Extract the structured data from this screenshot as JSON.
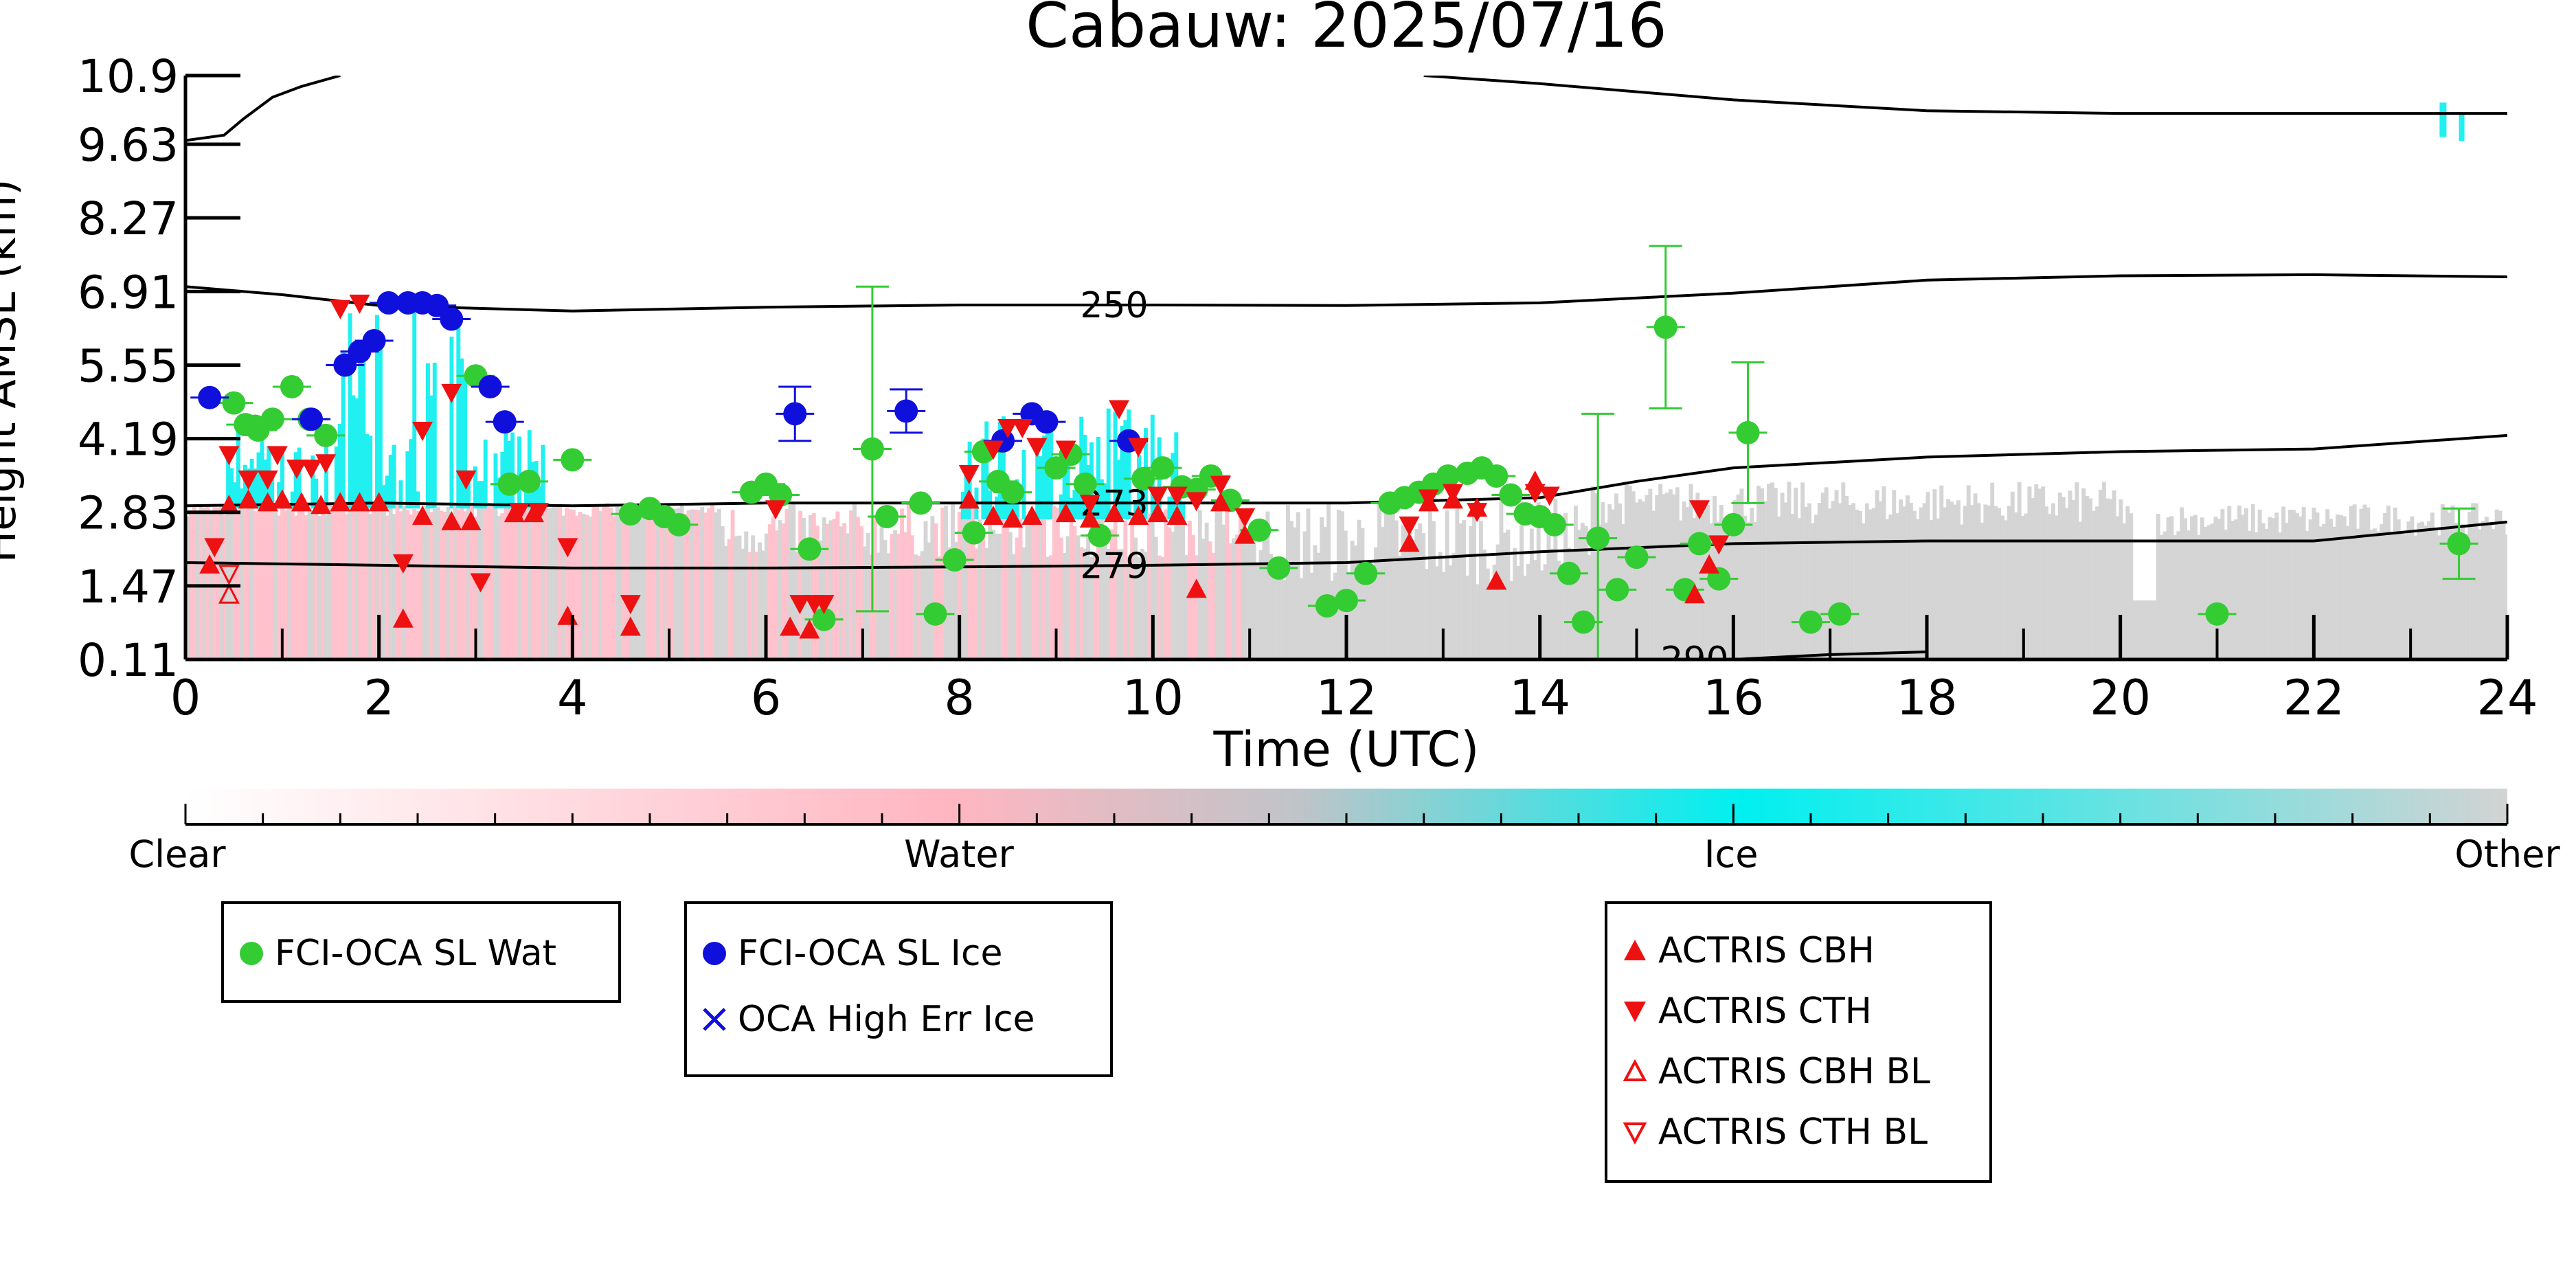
{
  "chart_data": {
    "type": "scatter",
    "title": "Cabauw: 2025/07/16",
    "xlabel": "Time (UTC)",
    "ylabel": "Height AMSL (km)",
    "xlim": [
      0,
      24
    ],
    "ylim": [
      0.11,
      10.9
    ],
    "x_ticks": [
      0,
      2,
      4,
      6,
      8,
      10,
      12,
      14,
      16,
      18,
      20,
      22,
      24
    ],
    "y_ticks": [
      0.11,
      1.47,
      2.83,
      4.19,
      5.55,
      6.91,
      8.27,
      9.63,
      10.9
    ],
    "y_tick_labels": [
      "0.11",
      "1.47",
      "2.83",
      "4.19",
      "5.55",
      "6.91",
      "8.27",
      "9.63",
      "10.9"
    ],
    "colorbar": {
      "labels": [
        "Clear",
        "Water",
        "Ice",
        "Other"
      ],
      "colors": [
        "#ffffff",
        "#ffb6c1",
        "#00f0f0",
        "#d3d3d3"
      ]
    },
    "isotherms": [
      {
        "label": "250",
        "label_x": 9.6,
        "points": [
          [
            0,
            7.0
          ],
          [
            1,
            6.85
          ],
          [
            2,
            6.65
          ],
          [
            4,
            6.55
          ],
          [
            6,
            6.62
          ],
          [
            8,
            6.66
          ],
          [
            10,
            6.66
          ],
          [
            12,
            6.65
          ],
          [
            14,
            6.7
          ],
          [
            16,
            6.88
          ],
          [
            18,
            7.12
          ],
          [
            20,
            7.2
          ],
          [
            22,
            7.22
          ],
          [
            24,
            7.18
          ]
        ]
      },
      {
        "label": "273",
        "label_x": 9.6,
        "points": [
          [
            0,
            2.95
          ],
          [
            2,
            3.0
          ],
          [
            4,
            2.95
          ],
          [
            6,
            3.0
          ],
          [
            8,
            3.0
          ],
          [
            10,
            3.0
          ],
          [
            12,
            3.0
          ],
          [
            14,
            3.1
          ],
          [
            15,
            3.4
          ],
          [
            16,
            3.65
          ],
          [
            18,
            3.85
          ],
          [
            20,
            3.95
          ],
          [
            22,
            4.0
          ],
          [
            24,
            4.25
          ]
        ]
      },
      {
        "label": "279",
        "label_x": 9.6,
        "points": [
          [
            0,
            1.9
          ],
          [
            2,
            1.85
          ],
          [
            4,
            1.8
          ],
          [
            6,
            1.8
          ],
          [
            8,
            1.82
          ],
          [
            10,
            1.85
          ],
          [
            12,
            1.9
          ],
          [
            13,
            2.0
          ],
          [
            14,
            2.1
          ],
          [
            16,
            2.25
          ],
          [
            18,
            2.3
          ],
          [
            20,
            2.3
          ],
          [
            22,
            2.3
          ],
          [
            24,
            2.65
          ]
        ]
      },
      {
        "label": "290",
        "label_x": 15.6,
        "points": [
          [
            14.2,
            0.11
          ],
          [
            16,
            0.11
          ],
          [
            17,
            0.2
          ],
          [
            18,
            0.25
          ]
        ]
      }
    ],
    "tropopause": [
      {
        "points": [
          [
            0,
            9.7
          ],
          [
            0.4,
            9.8
          ],
          [
            0.6,
            10.1
          ],
          [
            0.9,
            10.5
          ],
          [
            1.2,
            10.7
          ],
          [
            1.6,
            10.9
          ]
        ]
      },
      {
        "points": [
          [
            12.8,
            10.9
          ],
          [
            14,
            10.75
          ],
          [
            16,
            10.45
          ],
          [
            18,
            10.25
          ],
          [
            20,
            10.2
          ],
          [
            22,
            10.2
          ],
          [
            24,
            10.2
          ]
        ]
      }
    ],
    "series": [
      {
        "name": "FCI-OCA SL Wat",
        "color": "#33cc33",
        "marker": "circle",
        "points": [
          {
            "x": 0.5,
            "y": 4.85
          },
          {
            "x": 0.62,
            "y": 4.45
          },
          {
            "x": 0.75,
            "y": 4.35
          },
          {
            "x": 0.9,
            "y": 4.55
          },
          {
            "x": 1.1,
            "y": 5.15
          },
          {
            "x": 1.45,
            "y": 4.25
          },
          {
            "x": 3.0,
            "y": 5.35
          },
          {
            "x": 3.35,
            "y": 3.35
          },
          {
            "x": 3.55,
            "y": 3.4
          },
          {
            "x": 4.0,
            "y": 3.8
          },
          {
            "x": 4.6,
            "y": 2.8
          },
          {
            "x": 4.8,
            "y": 2.9
          },
          {
            "x": 4.95,
            "y": 2.75
          },
          {
            "x": 5.1,
            "y": 2.6
          },
          {
            "x": 5.85,
            "y": 3.2
          },
          {
            "x": 6.0,
            "y": 3.35
          },
          {
            "x": 6.15,
            "y": 3.15
          },
          {
            "x": 6.45,
            "y": 2.15
          },
          {
            "x": 6.6,
            "y": 0.85
          },
          {
            "x": 7.1,
            "y": 4.0,
            "err": 3.0
          },
          {
            "x": 7.25,
            "y": 2.75
          },
          {
            "x": 7.6,
            "y": 3.0
          },
          {
            "x": 7.75,
            "y": 0.95
          },
          {
            "x": 7.95,
            "y": 1.95
          },
          {
            "x": 8.15,
            "y": 2.45
          },
          {
            "x": 8.25,
            "y": 3.95
          },
          {
            "x": 8.4,
            "y": 3.4
          },
          {
            "x": 8.55,
            "y": 3.2
          },
          {
            "x": 9.0,
            "y": 3.65
          },
          {
            "x": 9.15,
            "y": 3.9
          },
          {
            "x": 9.3,
            "y": 3.35
          },
          {
            "x": 9.45,
            "y": 2.4
          },
          {
            "x": 9.9,
            "y": 3.45
          },
          {
            "x": 10.1,
            "y": 3.65
          },
          {
            "x": 10.3,
            "y": 3.3
          },
          {
            "x": 10.45,
            "y": 3.25
          },
          {
            "x": 10.6,
            "y": 3.5
          },
          {
            "x": 10.8,
            "y": 3.05
          },
          {
            "x": 11.1,
            "y": 2.5
          },
          {
            "x": 11.3,
            "y": 1.8
          },
          {
            "x": 11.8,
            "y": 1.1
          },
          {
            "x": 12.0,
            "y": 1.2
          },
          {
            "x": 12.2,
            "y": 1.7
          },
          {
            "x": 12.45,
            "y": 3.0
          },
          {
            "x": 12.6,
            "y": 3.1
          },
          {
            "x": 12.75,
            "y": 3.2
          },
          {
            "x": 12.9,
            "y": 3.35
          },
          {
            "x": 13.05,
            "y": 3.5
          },
          {
            "x": 13.25,
            "y": 3.55
          },
          {
            "x": 13.4,
            "y": 3.65
          },
          {
            "x": 13.55,
            "y": 3.5
          },
          {
            "x": 13.7,
            "y": 3.15
          },
          {
            "x": 13.85,
            "y": 2.8
          },
          {
            "x": 14.0,
            "y": 2.75
          },
          {
            "x": 14.15,
            "y": 2.6
          },
          {
            "x": 14.3,
            "y": 1.7
          },
          {
            "x": 14.45,
            "y": 0.8
          },
          {
            "x": 14.6,
            "y": 2.35,
            "err": 2.3
          },
          {
            "x": 14.8,
            "y": 1.4
          },
          {
            "x": 15.0,
            "y": 2.0
          },
          {
            "x": 15.3,
            "y": 6.25,
            "err": 1.5
          },
          {
            "x": 15.5,
            "y": 1.4
          },
          {
            "x": 15.65,
            "y": 2.25
          },
          {
            "x": 15.85,
            "y": 1.6
          },
          {
            "x": 16.0,
            "y": 2.6
          },
          {
            "x": 16.15,
            "y": 4.3,
            "err": 1.3
          },
          {
            "x": 16.8,
            "y": 0.8
          },
          {
            "x": 17.1,
            "y": 0.95
          },
          {
            "x": 21.0,
            "y": 0.95
          },
          {
            "x": 23.5,
            "y": 2.25,
            "err": 0.65
          },
          {
            "x": 0.72,
            "y": 4.42
          },
          {
            "x": 1.28,
            "y": 4.55
          }
        ]
      },
      {
        "name": "FCI-OCA SL Ice",
        "color": "#1010dd",
        "marker": "circle",
        "points": [
          {
            "x": 0.25,
            "y": 4.95
          },
          {
            "x": 1.3,
            "y": 4.55
          },
          {
            "x": 1.65,
            "y": 5.55
          },
          {
            "x": 1.8,
            "y": 5.8
          },
          {
            "x": 1.95,
            "y": 6.0
          },
          {
            "x": 2.1,
            "y": 6.7
          },
          {
            "x": 2.3,
            "y": 6.7
          },
          {
            "x": 2.45,
            "y": 6.7
          },
          {
            "x": 2.6,
            "y": 6.65
          },
          {
            "x": 2.75,
            "y": 6.4
          },
          {
            "x": 3.15,
            "y": 5.15
          },
          {
            "x": 3.3,
            "y": 4.5
          },
          {
            "x": 6.3,
            "y": 4.65,
            "err": 0.5
          },
          {
            "x": 7.45,
            "y": 4.7,
            "err": 0.4
          },
          {
            "x": 8.45,
            "y": 4.15
          },
          {
            "x": 8.75,
            "y": 4.65
          },
          {
            "x": 8.9,
            "y": 4.5
          },
          {
            "x": 9.75,
            "y": 4.15
          }
        ]
      },
      {
        "name": "ACTRIS CBH",
        "color": "#ee1111",
        "marker": "triangle-up",
        "points": [
          {
            "x": 0.25,
            "y": 1.85
          },
          {
            "x": 0.45,
            "y": 2.95
          },
          {
            "x": 0.65,
            "y": 3.05
          },
          {
            "x": 0.85,
            "y": 3.0
          },
          {
            "x": 1.0,
            "y": 3.05
          },
          {
            "x": 1.2,
            "y": 3.0
          },
          {
            "x": 1.4,
            "y": 2.95
          },
          {
            "x": 1.6,
            "y": 3.0
          },
          {
            "x": 1.8,
            "y": 3.0
          },
          {
            "x": 2.0,
            "y": 3.0
          },
          {
            "x": 2.25,
            "y": 0.85
          },
          {
            "x": 2.45,
            "y": 2.75
          },
          {
            "x": 2.75,
            "y": 2.65
          },
          {
            "x": 2.95,
            "y": 2.65
          },
          {
            "x": 3.4,
            "y": 2.8
          },
          {
            "x": 3.6,
            "y": 2.8
          },
          {
            "x": 3.95,
            "y": 0.9
          },
          {
            "x": 4.6,
            "y": 0.7
          },
          {
            "x": 6.25,
            "y": 0.7
          },
          {
            "x": 6.45,
            "y": 0.65
          },
          {
            "x": 8.1,
            "y": 3.05
          },
          {
            "x": 8.35,
            "y": 2.75
          },
          {
            "x": 8.55,
            "y": 2.7
          },
          {
            "x": 8.75,
            "y": 2.75
          },
          {
            "x": 9.1,
            "y": 2.8
          },
          {
            "x": 9.35,
            "y": 2.7
          },
          {
            "x": 9.6,
            "y": 2.8
          },
          {
            "x": 9.85,
            "y": 2.75
          },
          {
            "x": 10.05,
            "y": 2.8
          },
          {
            "x": 10.25,
            "y": 2.75
          },
          {
            "x": 10.45,
            "y": 1.4
          },
          {
            "x": 10.7,
            "y": 3.0
          },
          {
            "x": 10.95,
            "y": 2.4
          },
          {
            "x": 12.65,
            "y": 2.25
          },
          {
            "x": 12.85,
            "y": 3.0
          },
          {
            "x": 13.1,
            "y": 3.05
          },
          {
            "x": 13.35,
            "y": 2.9
          },
          {
            "x": 13.55,
            "y": 1.55
          },
          {
            "x": 13.95,
            "y": 3.4
          },
          {
            "x": 15.6,
            "y": 1.3
          },
          {
            "x": 15.75,
            "y": 1.85
          }
        ]
      },
      {
        "name": "ACTRIS CTH",
        "color": "#ee1111",
        "marker": "triangle-down",
        "points": [
          {
            "x": 0.3,
            "y": 2.2
          },
          {
            "x": 0.45,
            "y": 3.9
          },
          {
            "x": 0.65,
            "y": 3.45
          },
          {
            "x": 0.85,
            "y": 3.45
          },
          {
            "x": 0.95,
            "y": 3.9
          },
          {
            "x": 1.15,
            "y": 3.65
          },
          {
            "x": 1.3,
            "y": 3.65
          },
          {
            "x": 1.45,
            "y": 3.75
          },
          {
            "x": 1.6,
            "y": 6.6
          },
          {
            "x": 1.8,
            "y": 6.7
          },
          {
            "x": 2.25,
            "y": 1.9
          },
          {
            "x": 2.45,
            "y": 4.35
          },
          {
            "x": 2.75,
            "y": 5.05
          },
          {
            "x": 2.9,
            "y": 3.45
          },
          {
            "x": 3.05,
            "y": 1.55
          },
          {
            "x": 3.45,
            "y": 2.85
          },
          {
            "x": 3.65,
            "y": 2.85
          },
          {
            "x": 3.95,
            "y": 2.2
          },
          {
            "x": 4.6,
            "y": 1.15
          },
          {
            "x": 6.1,
            "y": 2.9
          },
          {
            "x": 6.35,
            "y": 1.15
          },
          {
            "x": 6.5,
            "y": 1.15
          },
          {
            "x": 6.6,
            "y": 1.15
          },
          {
            "x": 8.1,
            "y": 3.55
          },
          {
            "x": 8.35,
            "y": 4.0
          },
          {
            "x": 8.5,
            "y": 4.4
          },
          {
            "x": 8.65,
            "y": 4.4
          },
          {
            "x": 8.8,
            "y": 4.05
          },
          {
            "x": 9.1,
            "y": 4.0
          },
          {
            "x": 9.35,
            "y": 3.0
          },
          {
            "x": 9.65,
            "y": 4.75
          },
          {
            "x": 9.85,
            "y": 4.05
          },
          {
            "x": 10.05,
            "y": 3.15
          },
          {
            "x": 10.25,
            "y": 3.15
          },
          {
            "x": 10.45,
            "y": 3.05
          },
          {
            "x": 10.7,
            "y": 3.35
          },
          {
            "x": 10.95,
            "y": 2.75
          },
          {
            "x": 12.65,
            "y": 2.6
          },
          {
            "x": 12.85,
            "y": 3.1
          },
          {
            "x": 13.1,
            "y": 3.2
          },
          {
            "x": 13.35,
            "y": 2.85
          },
          {
            "x": 13.95,
            "y": 3.2
          },
          {
            "x": 14.1,
            "y": 3.15
          },
          {
            "x": 15.65,
            "y": 2.9
          },
          {
            "x": 15.85,
            "y": 2.25
          }
        ]
      },
      {
        "name": "ACTRIS CBH BL",
        "color": "#ee1111",
        "marker": "triangle-up-open",
        "points": [
          {
            "x": 0.45,
            "y": 1.3
          }
        ]
      },
      {
        "name": "ACTRIS CTH BL",
        "color": "#ee1111",
        "marker": "triangle-down-open",
        "points": [
          {
            "x": 0.45,
            "y": 1.7
          }
        ]
      },
      {
        "name": "OCA High Err Ice",
        "color": "#1010dd",
        "marker": "x",
        "points": []
      }
    ]
  }
}
